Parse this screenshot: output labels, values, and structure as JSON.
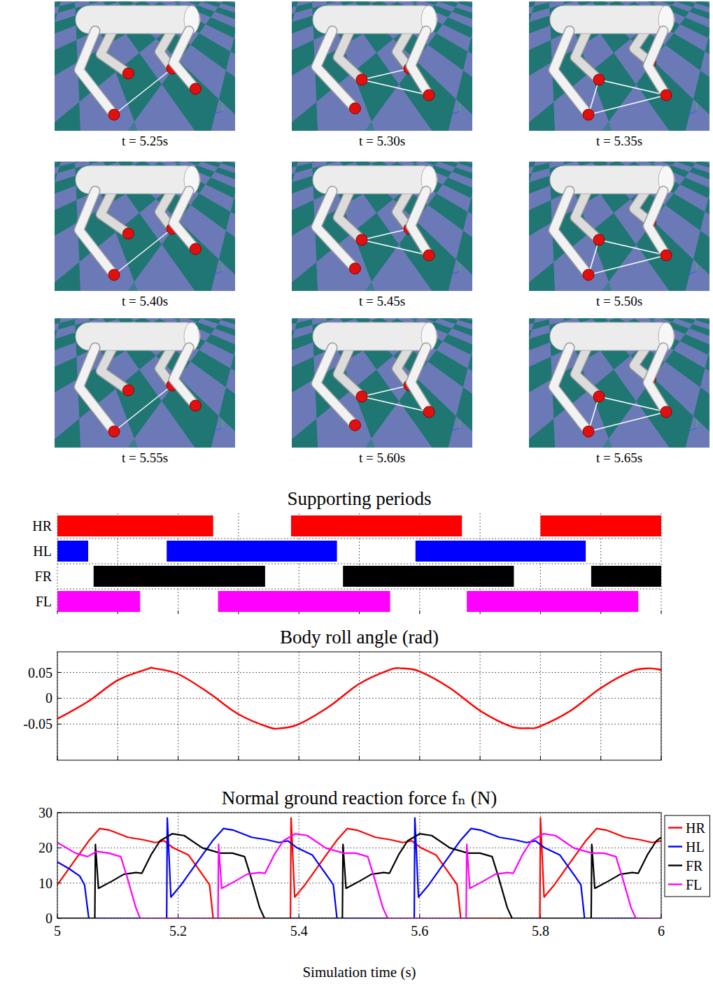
{
  "snapshots": {
    "captions": [
      "t = 5.25s",
      "t = 5.30s",
      "t = 5.35s",
      "t = 5.40s",
      "t = 5.45s",
      "t = 5.50s",
      "t = 5.55s",
      "t = 5.60s",
      "t = 5.65s"
    ]
  },
  "chart_data": [
    {
      "type": "timeline",
      "title": "Supporting periods",
      "categories": [
        "HR",
        "HL",
        "FR",
        "FL"
      ],
      "colors": [
        "#ff0000",
        "#0000ff",
        "#000000",
        "#ff00ff"
      ],
      "intervals": [
        [
          [
            5,
            5.258
          ],
          [
            5.387,
            5.67
          ],
          [
            5.8,
            6
          ]
        ],
        [
          [
            5,
            5.051
          ],
          [
            5.181,
            5.463
          ],
          [
            5.593,
            5.875
          ]
        ],
        [
          [
            5.06,
            5.344
          ],
          [
            5.473,
            5.756
          ],
          [
            5.884,
            6
          ]
        ],
        [
          [
            5,
            5.137
          ],
          [
            5.266,
            5.551
          ],
          [
            5.678,
            5.962
          ]
        ]
      ],
      "xlim": [
        5,
        6
      ],
      "xticks": [
        5,
        5.1,
        5.2,
        5.3,
        5.4,
        5.5,
        5.6,
        5.7,
        5.8,
        5.9,
        6
      ],
      "tick_labels": "y",
      "grid": true
    },
    {
      "type": "line",
      "title": "Body roll angle (rad)",
      "x": [
        5,
        5.05,
        5.1,
        5.15,
        5.16,
        5.2,
        5.25,
        5.3,
        5.35,
        5.37,
        5.4,
        5.45,
        5.5,
        5.55,
        5.57,
        5.6,
        5.65,
        5.7,
        5.75,
        5.78,
        5.8,
        5.85,
        5.9,
        5.95,
        5.98,
        6
      ],
      "values": [
        -0.04,
        -0.007,
        0.035,
        0.057,
        0.058,
        0.047,
        0.011,
        -0.031,
        -0.056,
        -0.058,
        -0.05,
        -0.016,
        0.028,
        0.055,
        0.058,
        0.052,
        0.02,
        -0.024,
        -0.054,
        -0.058,
        -0.054,
        -0.024,
        0.02,
        0.052,
        0.058,
        0.055
      ],
      "color": "#ff0000",
      "xlim": [
        5,
        6
      ],
      "xticks": [
        5,
        5.1,
        5.2,
        5.3,
        5.4,
        5.5,
        5.6,
        5.7,
        5.8,
        5.9,
        6
      ],
      "ylim": [
        -0.12,
        0.09
      ],
      "yticks": [
        -0.05,
        0,
        0.05
      ],
      "tick_labels": "y",
      "grid": true
    },
    {
      "type": "line",
      "title": "Normal ground reaction force fₙ (N)",
      "x_label": "Simulation time (s)",
      "series": [
        {
          "name": "HR",
          "color": "#ff0000",
          "x": [
            5,
            5.027,
            5.052,
            5.07,
            5.087,
            5.117,
            5.142,
            5.162,
            5.177,
            5.192,
            5.217,
            5.242,
            5.252,
            5.258,
            5.386,
            5.387,
            5.393,
            5.41,
            5.437,
            5.462,
            5.48,
            5.497,
            5.527,
            5.552,
            5.572,
            5.587,
            5.602,
            5.627,
            5.652,
            5.662,
            5.668,
            5.799,
            5.8,
            5.806,
            5.823,
            5.85,
            5.875,
            5.893,
            5.91,
            5.94,
            5.965,
            5.985,
            6
          ],
          "values": [
            9.5,
            16,
            22,
            25.5,
            25,
            23,
            22.3,
            21.5,
            22,
            20,
            18,
            12,
            9.5,
            0,
            0,
            28.5,
            6,
            9.5,
            16,
            22,
            25.5,
            25,
            23,
            22.3,
            21.5,
            22,
            20,
            18,
            12,
            9.5,
            0,
            0,
            28.5,
            6,
            9.5,
            16,
            22,
            25.5,
            25,
            23,
            22.3,
            21.5,
            22
          ]
        },
        {
          "name": "HL",
          "color": "#0000ff",
          "x": [
            5,
            5.02,
            5.037,
            5.045,
            5.052,
            5.181,
            5.182,
            5.188,
            5.205,
            5.232,
            5.257,
            5.275,
            5.292,
            5.322,
            5.347,
            5.367,
            5.382,
            5.397,
            5.422,
            5.447,
            5.457,
            5.463,
            5.591,
            5.592,
            5.598,
            5.615,
            5.642,
            5.667,
            5.685,
            5.702,
            5.732,
            5.757,
            5.777,
            5.792,
            5.807,
            5.832,
            5.857,
            5.867,
            5.873,
            6
          ],
          "values": [
            16,
            14,
            12,
            9.5,
            0,
            0,
            28.5,
            6,
            9.5,
            16,
            22,
            25.5,
            25,
            23,
            22.3,
            21.5,
            22,
            20,
            18,
            12,
            9.5,
            0,
            0,
            28.5,
            6,
            9.5,
            16,
            22,
            25.5,
            25,
            23,
            22.3,
            21.5,
            22,
            20,
            18,
            12,
            9.5,
            0,
            0
          ]
        },
        {
          "name": "FR",
          "color": "#000000",
          "x": [
            5,
            5.062,
            5.063,
            5.068,
            5.09,
            5.11,
            5.13,
            5.14,
            5.155,
            5.17,
            5.19,
            5.21,
            5.24,
            5.27,
            5.29,
            5.31,
            5.32,
            5.335,
            5.343,
            5.472,
            5.473,
            5.478,
            5.5,
            5.52,
            5.54,
            5.55,
            5.565,
            5.58,
            5.6,
            5.62,
            5.65,
            5.68,
            5.7,
            5.72,
            5.73,
            5.745,
            5.753,
            5.884,
            5.885,
            5.89,
            5.912,
            5.932,
            5.952,
            5.962,
            5.977,
            5.992,
            6
          ],
          "values": [
            0,
            0,
            21,
            8.5,
            10.5,
            12.5,
            13,
            12.8,
            18,
            22,
            24,
            23.5,
            20,
            18.5,
            18.5,
            17.5,
            12,
            3,
            0,
            0,
            21,
            8.5,
            10.5,
            12.5,
            13,
            12.8,
            18,
            22,
            24,
            23.5,
            20,
            18.5,
            18.5,
            17.5,
            12,
            3,
            0,
            0,
            21,
            8.5,
            10.5,
            12.5,
            13,
            12.8,
            18,
            22,
            23
          ]
        },
        {
          "name": "FL",
          "color": "#ff00ff",
          "x": [
            5,
            5.03,
            5.05,
            5.065,
            5.085,
            5.105,
            5.115,
            5.13,
            5.137,
            5.266,
            5.267,
            5.272,
            5.294,
            5.314,
            5.334,
            5.344,
            5.359,
            5.374,
            5.394,
            5.414,
            5.444,
            5.474,
            5.494,
            5.514,
            5.524,
            5.539,
            5.547,
            5.677,
            5.678,
            5.683,
            5.705,
            5.725,
            5.745,
            5.755,
            5.77,
            5.785,
            5.805,
            5.825,
            5.855,
            5.885,
            5.905,
            5.925,
            5.935,
            5.95,
            5.958,
            6
          ],
          "values": [
            21.5,
            18.5,
            17.5,
            19,
            18.5,
            17.5,
            12,
            3,
            0,
            0,
            21,
            8.5,
            10.5,
            12.5,
            13,
            12.8,
            18,
            22,
            24,
            23.5,
            20,
            18.5,
            18.5,
            17.5,
            12,
            3,
            0,
            0,
            21,
            8.5,
            10.5,
            12.5,
            13,
            12.8,
            18,
            22,
            24,
            23.5,
            20,
            18.5,
            18.5,
            17.5,
            12,
            3,
            0,
            0
          ]
        }
      ],
      "xlim": [
        5,
        6
      ],
      "xticks": [
        5,
        5.2,
        5.4,
        5.6,
        5.8,
        6
      ],
      "ylim": [
        0,
        30
      ],
      "yticks": [
        0,
        10,
        20,
        30
      ],
      "grid": true,
      "legend": "right"
    }
  ]
}
